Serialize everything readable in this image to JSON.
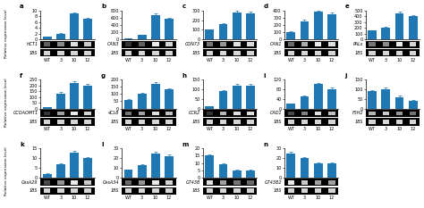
{
  "chart_data": [
    {
      "type": "bar",
      "title": "a",
      "ylabel": "Relative expression level",
      "categories": [
        "WT",
        "3",
        "10",
        "12"
      ],
      "values": [
        1,
        2,
        9,
        7
      ],
      "errors": [
        0.05,
        0.15,
        0.4,
        0.3
      ],
      "ylim": [
        0,
        10
      ],
      "yticks": [
        0,
        2,
        4,
        6,
        8,
        10
      ],
      "gel_rows": [
        {
          "label": "HCT1",
          "values": [
            0.3,
            0.5,
            0.9,
            0.8
          ]
        },
        {
          "label": "18S",
          "values": [
            0.85,
            0.85,
            0.85,
            0.85
          ]
        }
      ]
    },
    {
      "type": "bar",
      "title": "b",
      "categories": [
        "WT",
        "3",
        "10",
        "12"
      ],
      "values": [
        20,
        120,
        680,
        560
      ],
      "errors": [
        2,
        10,
        30,
        25
      ],
      "ylim": [
        0,
        800
      ],
      "yticks": [
        0,
        200,
        400,
        600,
        800
      ],
      "gel_rows": [
        {
          "label": "CAN3",
          "values": [
            0.1,
            0.3,
            0.95,
            0.85
          ]
        },
        {
          "label": "18S",
          "values": [
            0.85,
            0.85,
            0.85,
            0.85
          ]
        }
      ]
    },
    {
      "type": "bar",
      "title": "c",
      "categories": [
        "WT",
        "3",
        "10",
        "12"
      ],
      "values": [
        100,
        160,
        280,
        270
      ],
      "errors": [
        8,
        12,
        15,
        14
      ],
      "ylim": [
        0,
        300
      ],
      "yticks": [
        0,
        100,
        200,
        300
      ],
      "gel_rows": [
        {
          "label": "CON73",
          "values": [
            0.4,
            0.55,
            0.9,
            0.88
          ]
        },
        {
          "label": "18S",
          "values": [
            0.85,
            0.85,
            0.85,
            0.85
          ]
        }
      ]
    },
    {
      "type": "bar",
      "title": "d",
      "categories": [
        "WT",
        "3",
        "10",
        "12"
      ],
      "values": [
        100,
        250,
        380,
        350
      ],
      "errors": [
        8,
        20,
        20,
        18
      ],
      "ylim": [
        0,
        400
      ],
      "yticks": [
        0,
        100,
        200,
        300,
        400
      ],
      "gel_rows": [
        {
          "label": "CAN1",
          "values": [
            0.35,
            0.65,
            0.95,
            0.9
          ]
        },
        {
          "label": "18S",
          "values": [
            0.85,
            0.85,
            0.85,
            0.85
          ]
        }
      ]
    },
    {
      "type": "bar",
      "title": "e",
      "categories": [
        "WT",
        "3",
        "10",
        "12"
      ],
      "values": [
        150,
        200,
        450,
        400
      ],
      "errors": [
        10,
        15,
        25,
        22
      ],
      "ylim": [
        0,
        500
      ],
      "yticks": [
        0,
        100,
        200,
        300,
        400,
        500
      ],
      "gel_rows": [
        {
          "label": "PALs",
          "values": [
            0.4,
            0.5,
            0.95,
            0.85
          ]
        },
        {
          "label": "18S",
          "values": [
            0.85,
            0.85,
            0.85,
            0.85
          ]
        }
      ]
    },
    {
      "type": "bar",
      "title": "f",
      "ylabel": "Relative expression level",
      "categories": [
        "WT",
        "3",
        "10",
        "12"
      ],
      "values": [
        10,
        130,
        220,
        200
      ],
      "errors": [
        1,
        10,
        12,
        10
      ],
      "ylim": [
        0,
        250
      ],
      "yticks": [
        0,
        50,
        100,
        150,
        200,
        250
      ],
      "gel_rows": [
        {
          "label": "CCOAOMT1",
          "values": [
            0.1,
            0.6,
            0.95,
            0.85
          ]
        },
        {
          "label": "18S",
          "values": [
            0.85,
            0.85,
            0.85,
            0.85
          ]
        }
      ]
    },
    {
      "type": "bar",
      "title": "g",
      "categories": [
        "WT",
        "3",
        "10",
        "12"
      ],
      "values": [
        60,
        100,
        170,
        130
      ],
      "errors": [
        5,
        8,
        10,
        9
      ],
      "ylim": [
        0,
        200
      ],
      "yticks": [
        0,
        50,
        100,
        150,
        200
      ],
      "gel_rows": [
        {
          "label": "4CL8",
          "values": [
            0.4,
            0.6,
            0.9,
            0.75
          ]
        },
        {
          "label": "18S",
          "values": [
            0.85,
            0.85,
            0.85,
            0.85
          ]
        }
      ]
    },
    {
      "type": "bar",
      "title": "h",
      "categories": [
        "WT",
        "3",
        "10",
        "12"
      ],
      "values": [
        10,
        90,
        120,
        120
      ],
      "errors": [
        1,
        7,
        8,
        8
      ],
      "ylim": [
        0,
        150
      ],
      "yticks": [
        0,
        50,
        100,
        150
      ],
      "gel_rows": [
        {
          "label": "CCR2",
          "values": [
            0.1,
            0.7,
            0.9,
            0.9
          ]
        },
        {
          "label": "18S",
          "values": [
            0.85,
            0.85,
            0.85,
            0.85
          ]
        }
      ]
    },
    {
      "type": "bar",
      "title": "i",
      "categories": [
        "WT",
        "3",
        "10",
        "12"
      ],
      "values": [
        20,
        50,
        100,
        80
      ],
      "errors": [
        2,
        4,
        6,
        5
      ],
      "ylim": [
        0,
        120
      ],
      "yticks": [
        0,
        40,
        80,
        120
      ],
      "gel_rows": [
        {
          "label": "CAD1",
          "values": [
            0.2,
            0.45,
            0.9,
            0.75
          ]
        },
        {
          "label": "18S",
          "values": [
            0.85,
            0.85,
            0.85,
            0.85
          ]
        }
      ]
    },
    {
      "type": "bar",
      "title": "j",
      "categories": [
        "WT",
        "3",
        "10",
        "12"
      ],
      "values": [
        90,
        100,
        60,
        40
      ],
      "errors": [
        6,
        7,
        5,
        3
      ],
      "ylim": [
        0,
        150
      ],
      "yticks": [
        0,
        50,
        100,
        150
      ],
      "gel_rows": [
        {
          "label": "F5H2",
          "values": [
            0.7,
            0.8,
            0.55,
            0.4
          ]
        },
        {
          "label": "18S",
          "values": [
            0.85,
            0.85,
            0.85,
            0.85
          ]
        }
      ]
    },
    {
      "type": "bar",
      "title": "k",
      "ylabel": "Relative expression level",
      "categories": [
        "WT",
        "3",
        "10",
        "12"
      ],
      "values": [
        2,
        7,
        13,
        10
      ],
      "errors": [
        0.2,
        0.5,
        0.8,
        0.7
      ],
      "ylim": [
        0,
        15
      ],
      "yticks": [
        0,
        5,
        10,
        15
      ],
      "gel_rows": [
        {
          "label": "CesA29",
          "values": [
            0.2,
            0.55,
            0.95,
            0.8
          ]
        },
        {
          "label": "18S",
          "values": [
            0.85,
            0.85,
            0.85,
            0.85
          ]
        }
      ]
    },
    {
      "type": "bar",
      "title": "l",
      "categories": [
        "WT",
        "3",
        "10",
        "12"
      ],
      "values": [
        8,
        13,
        25,
        22
      ],
      "errors": [
        0.6,
        1,
        1.5,
        1.4
      ],
      "ylim": [
        0,
        30
      ],
      "yticks": [
        0,
        10,
        20,
        30
      ],
      "gel_rows": [
        {
          "label": "CesA34",
          "values": [
            0.35,
            0.55,
            0.95,
            0.85
          ]
        },
        {
          "label": "18S",
          "values": [
            0.85,
            0.85,
            0.85,
            0.85
          ]
        }
      ]
    },
    {
      "type": "bar",
      "title": "m",
      "categories": [
        "WT",
        "3",
        "10",
        "12"
      ],
      "values": [
        15,
        9,
        5,
        5
      ],
      "errors": [
        1,
        0.7,
        0.4,
        0.4
      ],
      "ylim": [
        0,
        20
      ],
      "yticks": [
        0,
        5,
        10,
        15,
        20
      ],
      "gel_rows": [
        {
          "label": "GT43B",
          "values": [
            0.9,
            0.6,
            0.4,
            0.35
          ]
        },
        {
          "label": "18S",
          "values": [
            0.85,
            0.85,
            0.85,
            0.85
          ]
        }
      ]
    },
    {
      "type": "bar",
      "title": "n",
      "categories": [
        "WT",
        "3",
        "10",
        "12"
      ],
      "values": [
        25,
        20,
        15,
        15
      ],
      "errors": [
        1.5,
        1.3,
        1,
        1
      ],
      "ylim": [
        0,
        30
      ],
      "yticks": [
        0,
        10,
        20,
        30
      ],
      "gel_rows": [
        {
          "label": "GT43B2",
          "values": [
            0.95,
            0.8,
            0.6,
            0.6
          ]
        },
        {
          "label": "18S",
          "values": [
            0.85,
            0.85,
            0.85,
            0.85
          ]
        }
      ]
    }
  ]
}
